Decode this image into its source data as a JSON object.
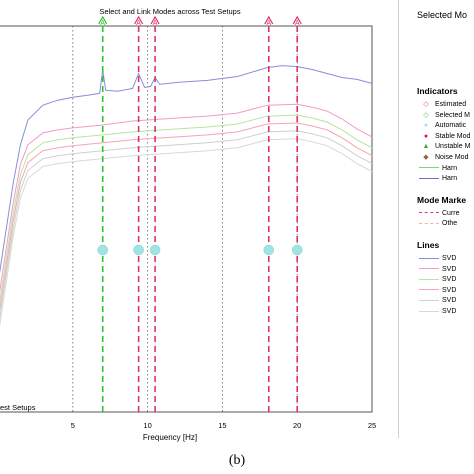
{
  "chart_data": {
    "type": "line",
    "title": "Select and Link Modes across Test Setups",
    "xlabel": "Frequency [Hz]",
    "xlim": [
      0,
      25
    ],
    "x_ticks": [
      5,
      10,
      15,
      20,
      25
    ],
    "bottom_left_text": "est Setups",
    "mode_lines": [
      {
        "x": 7.0,
        "style": "green-dashed",
        "label": "A"
      },
      {
        "x": 9.4,
        "style": "magenta-dashed",
        "label": "A"
      },
      {
        "x": 10.5,
        "style": "magenta-dashed",
        "label": "A"
      },
      {
        "x": 18.1,
        "style": "magenta-dashed",
        "label": "A"
      },
      {
        "x": 20.0,
        "style": "magenta-dashed",
        "label": "A"
      }
    ],
    "grid_lines_x": [
      5,
      10,
      15,
      20
    ],
    "automatic_markers_x": [
      7.0,
      9.4,
      10.5,
      18.1,
      20.0
    ],
    "series": [
      {
        "color": "#8a8ed8",
        "x": [
          0,
          0.5,
          1,
          1.5,
          2,
          3,
          4,
          5,
          6,
          6.8,
          7.0,
          7.2,
          8,
          9,
          9.4,
          9.8,
          10.2,
          10.5,
          10.8,
          12,
          14,
          16,
          18,
          19,
          20,
          21,
          22,
          23,
          24,
          25
        ],
        "y": [
          -200,
          -150,
          -100,
          -60,
          -35,
          -20,
          -15,
          -12,
          -10,
          -8,
          16,
          -5,
          -6,
          -3,
          12,
          -2,
          -1,
          8,
          1,
          3,
          5,
          9,
          18,
          20,
          19,
          16,
          12,
          8,
          6,
          2
        ]
      },
      {
        "color": "#f19bc8",
        "x": [
          0,
          0.5,
          1,
          1.5,
          2,
          3,
          4,
          5,
          7,
          9,
          10,
          12,
          14,
          16,
          18,
          20,
          21,
          22,
          23,
          24,
          25
        ],
        "y": [
          -220,
          -170,
          -120,
          -80,
          -60,
          -48,
          -45,
          -43,
          -40,
          -36,
          -35,
          -33,
          -31,
          -28,
          -20,
          -19,
          -22,
          -26,
          -34,
          -44,
          -52
        ]
      },
      {
        "color": "#b5e6a0",
        "x": [
          0,
          0.5,
          1,
          1.5,
          2,
          3,
          4,
          5,
          7,
          9,
          10,
          12,
          14,
          16,
          18,
          20,
          21,
          22,
          23,
          24,
          25
        ],
        "y": [
          -230,
          -180,
          -130,
          -90,
          -70,
          -58,
          -55,
          -53,
          -50,
          -47,
          -46,
          -44,
          -42,
          -39,
          -31,
          -30,
          -33,
          -37,
          -45,
          -55,
          -63
        ]
      },
      {
        "color": "#f3a7b0",
        "x": [
          0,
          0.5,
          1,
          1.5,
          2,
          3,
          4,
          5,
          7,
          9,
          10,
          12,
          14,
          16,
          18,
          20,
          21,
          22,
          23,
          24,
          25
        ],
        "y": [
          -238,
          -188,
          -138,
          -98,
          -78,
          -66,
          -63,
          -61,
          -58,
          -55,
          -54,
          -52,
          -50,
          -47,
          -39,
          -38,
          -41,
          -45,
          -53,
          -63,
          -71
        ]
      },
      {
        "color": "#cfcfcf",
        "x": [
          0,
          0.5,
          1,
          1.5,
          2,
          3,
          4,
          5,
          7,
          9,
          10,
          12,
          14,
          16,
          18,
          20,
          21,
          22,
          23,
          24,
          25
        ],
        "y": [
          -246,
          -196,
          -146,
          -106,
          -86,
          -74,
          -71,
          -69,
          -66,
          -63,
          -62,
          -60,
          -58,
          -55,
          -47,
          -46,
          -49,
          -53,
          -61,
          -71,
          -79
        ]
      },
      {
        "color": "#d8d8d8",
        "x": [
          0,
          0.5,
          1,
          1.5,
          2,
          3,
          4,
          5,
          7,
          9,
          10,
          12,
          14,
          16,
          18,
          20,
          21,
          22,
          23,
          24,
          25
        ],
        "y": [
          -254,
          -204,
          -154,
          -114,
          -94,
          -82,
          -79,
          -77,
          -74,
          -71,
          -70,
          -68,
          -66,
          -63,
          -55,
          -54,
          -57,
          -61,
          -69,
          -79,
          -87
        ]
      }
    ],
    "ylim": [
      -330,
      60
    ]
  },
  "legend": {
    "title": "Selected Mo",
    "sections": [
      {
        "head": "Indicators",
        "items": [
          {
            "sym": "◇",
            "color": "#e0308a",
            "text": "Estimated"
          },
          {
            "sym": "◇",
            "color": "#2fb82f",
            "text": "Selected M"
          },
          {
            "sym": "●",
            "color": "#9fe3e3",
            "text": "Automatic"
          },
          {
            "sym": "●",
            "color": "#d8202a",
            "text": "Stable Mod"
          },
          {
            "sym": "▲",
            "color": "#30b030",
            "text": "Unstable M"
          },
          {
            "sym": "◆",
            "color": "#8a6a30",
            "text": "Noise Mod"
          },
          {
            "line": "#7ad67a",
            "text": "Harn"
          },
          {
            "line": "#6a70c8",
            "text": "Harn"
          }
        ]
      },
      {
        "head": "Mode Marke",
        "items": [
          {
            "dash": "#e0308a",
            "text": "Curre"
          },
          {
            "dash": "#f0b8a0",
            "text": "Othe"
          }
        ]
      },
      {
        "head": "Lines",
        "items": [
          {
            "line": "#8a8ed8",
            "text": "SVD"
          },
          {
            "line": "#f19bc8",
            "text": "SVD"
          },
          {
            "line": "#b5e6a0",
            "text": "SVD"
          },
          {
            "line": "#f3a7b0",
            "text": "SVD"
          },
          {
            "line": "#cfcfcf",
            "text": "SVD"
          },
          {
            "line": "#d8d8d8",
            "text": "SVD"
          }
        ]
      }
    ]
  },
  "caption": "(b)"
}
